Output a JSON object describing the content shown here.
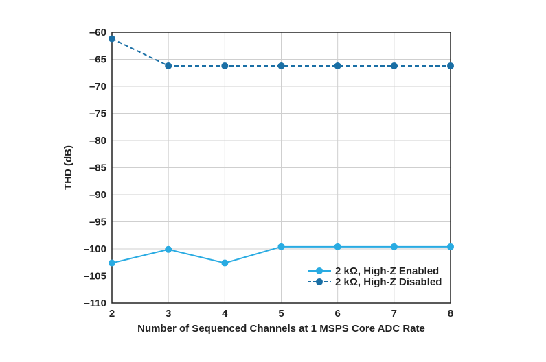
{
  "chart_data": {
    "type": "line",
    "title": "",
    "xlabel": "Number of Sequenced Channels at 1 MSPS Core ADC Rate",
    "ylabel": "THD (dB)",
    "x": [
      2,
      3,
      4,
      5,
      6,
      7,
      8
    ],
    "xlim": [
      2,
      8
    ],
    "ylim": [
      -110,
      -60
    ],
    "yticks": [
      -60,
      -65,
      -70,
      -75,
      -80,
      -85,
      -90,
      -95,
      -100,
      -105,
      -110
    ],
    "ytick_labels": [
      "–60",
      "–65",
      "–70",
      "–75",
      "–80",
      "–85",
      "–90",
      "–95",
      "–100",
      "–105",
      "–110"
    ],
    "xtick_labels": [
      "2",
      "3",
      "4",
      "5",
      "6",
      "7",
      "8"
    ],
    "grid": true,
    "legend_position": "bottom-right",
    "series": [
      {
        "name": "2 kΩ, High-Z Enabled",
        "values": [
          -102.6,
          -100.1,
          -102.6,
          -99.6,
          -99.6,
          -99.6,
          -99.6
        ],
        "color": "#29ABE2",
        "dash": "solid"
      },
      {
        "name": "2 kΩ, High-Z Disabled",
        "values": [
          -61.2,
          -66.2,
          -66.2,
          -66.2,
          -66.2,
          -66.2,
          -66.2
        ],
        "color": "#1A6FA5",
        "dash": "dashed"
      }
    ]
  }
}
